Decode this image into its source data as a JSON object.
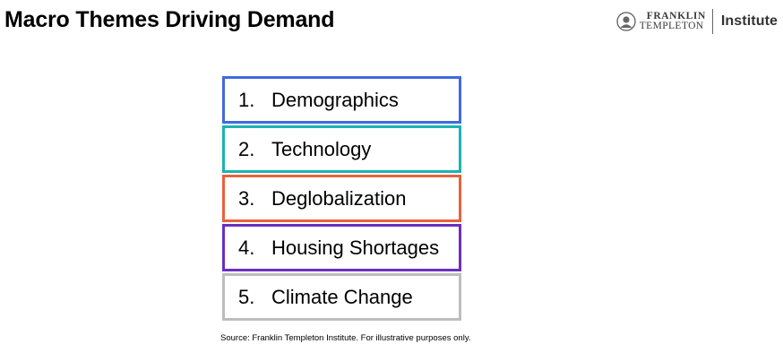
{
  "header": {
    "title": "Macro Themes Driving Demand"
  },
  "logo": {
    "brand_line1": "FRANKLIN",
    "brand_line2": "TEMPLETON",
    "sub_brand": "Institute"
  },
  "themes": [
    {
      "number": "1.",
      "label": "Demographics",
      "color": "#4169E1"
    },
    {
      "number": "2.",
      "label": "Technology",
      "color": "#1BB3B3"
    },
    {
      "number": "3.",
      "label": "Deglobalization",
      "color": "#E8623A"
    },
    {
      "number": "4.",
      "label": "Housing Shortages",
      "color": "#6A2FC0"
    },
    {
      "number": "5.",
      "label": "Climate Change",
      "color": "#BDBDBD"
    }
  ],
  "footer": {
    "source": "Source: Franklin Templeton Institute. For illustrative purposes only."
  }
}
